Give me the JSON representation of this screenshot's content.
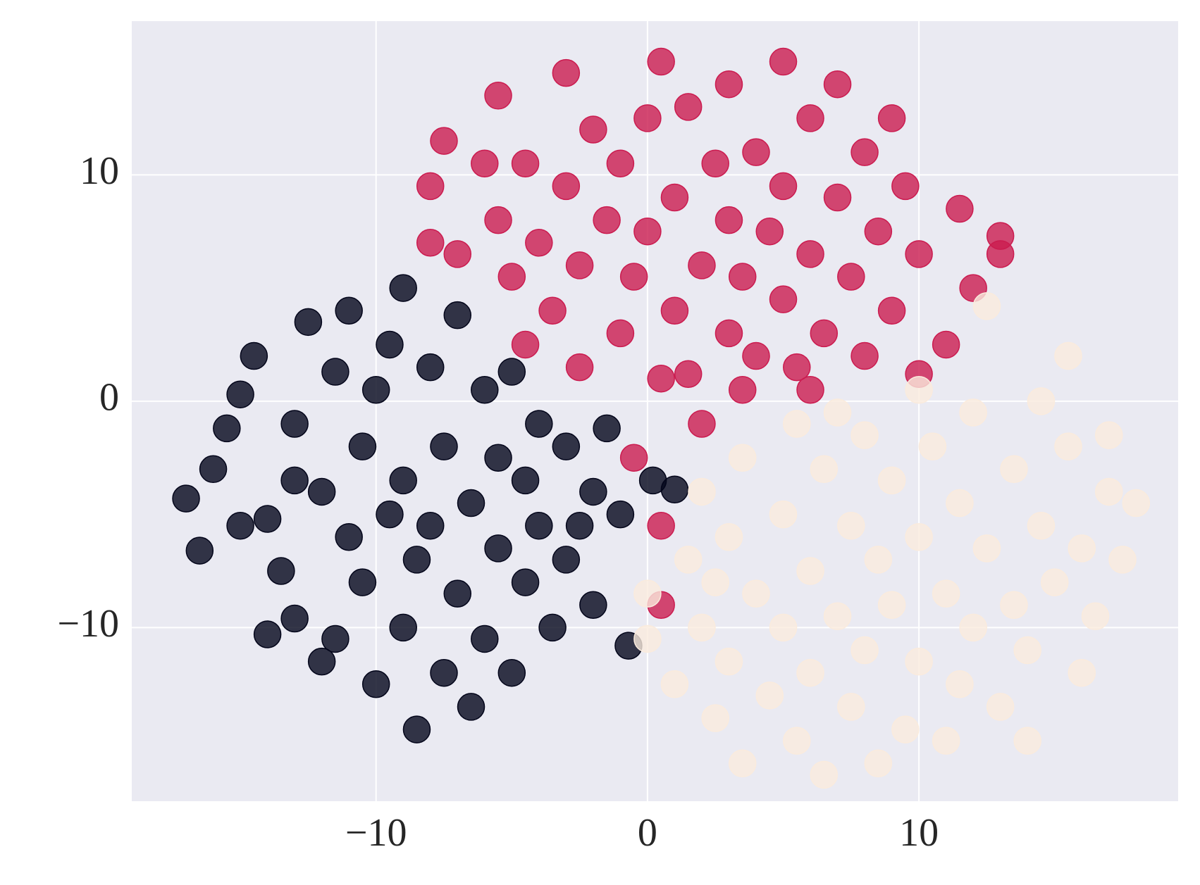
{
  "chart_data": {
    "type": "scatter",
    "grid": true,
    "xlim": [
      -19,
      19.55
    ],
    "ylim": [
      -17.67,
      16.79
    ],
    "xticks": [
      {
        "value": -10,
        "label": "−10"
      },
      0,
      10
    ],
    "yticks": [
      {
        "value": -10,
        "label": "−10"
      },
      0,
      10
    ],
    "series": [
      {
        "color": "#03051a",
        "x": [
          -17,
          -16.5,
          -16,
          -15.5,
          -15,
          -15,
          -14.5,
          -14,
          -14,
          -13.5,
          -13,
          -13,
          -12.5,
          -12,
          -12,
          -11.5,
          -11,
          -11,
          -10.5,
          -10.5,
          -10,
          -10,
          -9.5,
          -9.5,
          -9,
          -9,
          -8.5,
          -8.5,
          -8,
          -8,
          -7.5,
          -7.5,
          -7,
          -7,
          -6.5,
          -6.5,
          -6,
          -6,
          -5.5,
          -5.5,
          -5,
          -5,
          -4.5,
          -4.5,
          -4,
          -4,
          -3.5,
          -3,
          -3,
          -2.5,
          -2,
          -2,
          -1.5,
          -1,
          -0.7,
          0.2,
          1,
          -9,
          -11.5,
          -13
        ],
        "values": [
          -4.3,
          -6.6,
          -3,
          -1.2,
          0.3,
          -5.5,
          2,
          -10.3,
          -5.2,
          -7.5,
          -3.5,
          -9.6,
          3.5,
          -4,
          -11.5,
          1.3,
          -6,
          4,
          -8,
          -2,
          0.5,
          -12.5,
          -5,
          2.5,
          -10,
          -3.5,
          -14.5,
          -7,
          1.5,
          -5.5,
          -2,
          -12,
          3.8,
          -8.5,
          -4.5,
          -13.5,
          0.5,
          -10.5,
          -6.5,
          -2.5,
          -12,
          1.3,
          -3.5,
          -8,
          -5.5,
          -1,
          -10,
          -7,
          -2,
          -5.5,
          -9,
          -4,
          -1.2,
          -5,
          -10.8,
          -3.5,
          -3.9,
          5,
          -10.5,
          -1
        ]
      },
      {
        "color": "#cb1b4f",
        "x": [
          -8,
          -8,
          -7.5,
          -7,
          -6,
          -5.5,
          -5.5,
          -5,
          -4.5,
          -4.5,
          -4,
          -3.5,
          -3,
          -3,
          -2.5,
          -2.5,
          -2,
          -1.5,
          -1,
          -1,
          -0.5,
          -0.5,
          0,
          0,
          0.5,
          0.5,
          0.5,
          1,
          1,
          1.5,
          1.5,
          2,
          2,
          2.5,
          3,
          3,
          3,
          3.5,
          3.5,
          4,
          4,
          4.5,
          5,
          5,
          5,
          5.5,
          6,
          6,
          6,
          6.5,
          7,
          7,
          7.5,
          8,
          8,
          8.5,
          9,
          9,
          9.5,
          10,
          10,
          11,
          11.5,
          12,
          13,
          0.5,
          13
        ],
        "values": [
          9.5,
          7,
          11.5,
          6.5,
          10.5,
          13.5,
          8,
          5.5,
          2.5,
          10.5,
          7,
          4,
          14.5,
          9.5,
          1.5,
          6,
          12,
          8,
          3,
          10.5,
          5.5,
          -2.5,
          7.5,
          12.5,
          1,
          -5.5,
          15,
          4,
          9,
          13,
          1.2,
          6,
          -1,
          10.5,
          3,
          8,
          14,
          0.5,
          5.5,
          11,
          2,
          7.5,
          15,
          4.5,
          9.5,
          1.5,
          12.5,
          6.5,
          0.5,
          3,
          9,
          14,
          5.5,
          11,
          2,
          7.5,
          12.5,
          4,
          9.5,
          6.5,
          1.2,
          2.5,
          8.5,
          5,
          6.5,
          -9,
          7.3
        ]
      },
      {
        "color": "#faebdd",
        "x": [
          0,
          0,
          1,
          1.5,
          2,
          2,
          2.5,
          3,
          3,
          3.5,
          3.5,
          4,
          4.5,
          5,
          5,
          5.5,
          5.5,
          6,
          6,
          6.5,
          6.5,
          7,
          7.5,
          7.5,
          8,
          8,
          8.5,
          8.5,
          9,
          9,
          9.5,
          10,
          10,
          10,
          10.5,
          11,
          11,
          11.5,
          11.5,
          12,
          12,
          12.5,
          12.5,
          13,
          13.5,
          13.5,
          14,
          14.5,
          14.5,
          15,
          15.5,
          15.5,
          16,
          16,
          16.5,
          17,
          17,
          18,
          17.5,
          2.5,
          7,
          14
        ],
        "values": [
          -8.5,
          -10.5,
          -12.5,
          -7,
          -4,
          -10,
          -14,
          -6,
          -11.5,
          -2.5,
          -16,
          -8.5,
          -13,
          -5,
          -10,
          -1,
          -15,
          -7.5,
          -12,
          -3,
          -16.5,
          -9.5,
          -5.5,
          -13.5,
          -1.5,
          -11,
          -7,
          -16,
          -3.5,
          -9,
          -14.5,
          0.5,
          -6,
          -11.5,
          -2,
          -8.5,
          -15,
          -4.5,
          -12.5,
          -0.5,
          -10,
          4.2,
          -6.5,
          -13.5,
          -3,
          -9,
          -11,
          -5.5,
          0,
          -8,
          -2,
          2,
          -12,
          -6.5,
          -9.5,
          -4,
          -1.5,
          -4.5,
          -7,
          -8,
          -0.5,
          -15
        ]
      }
    ]
  }
}
